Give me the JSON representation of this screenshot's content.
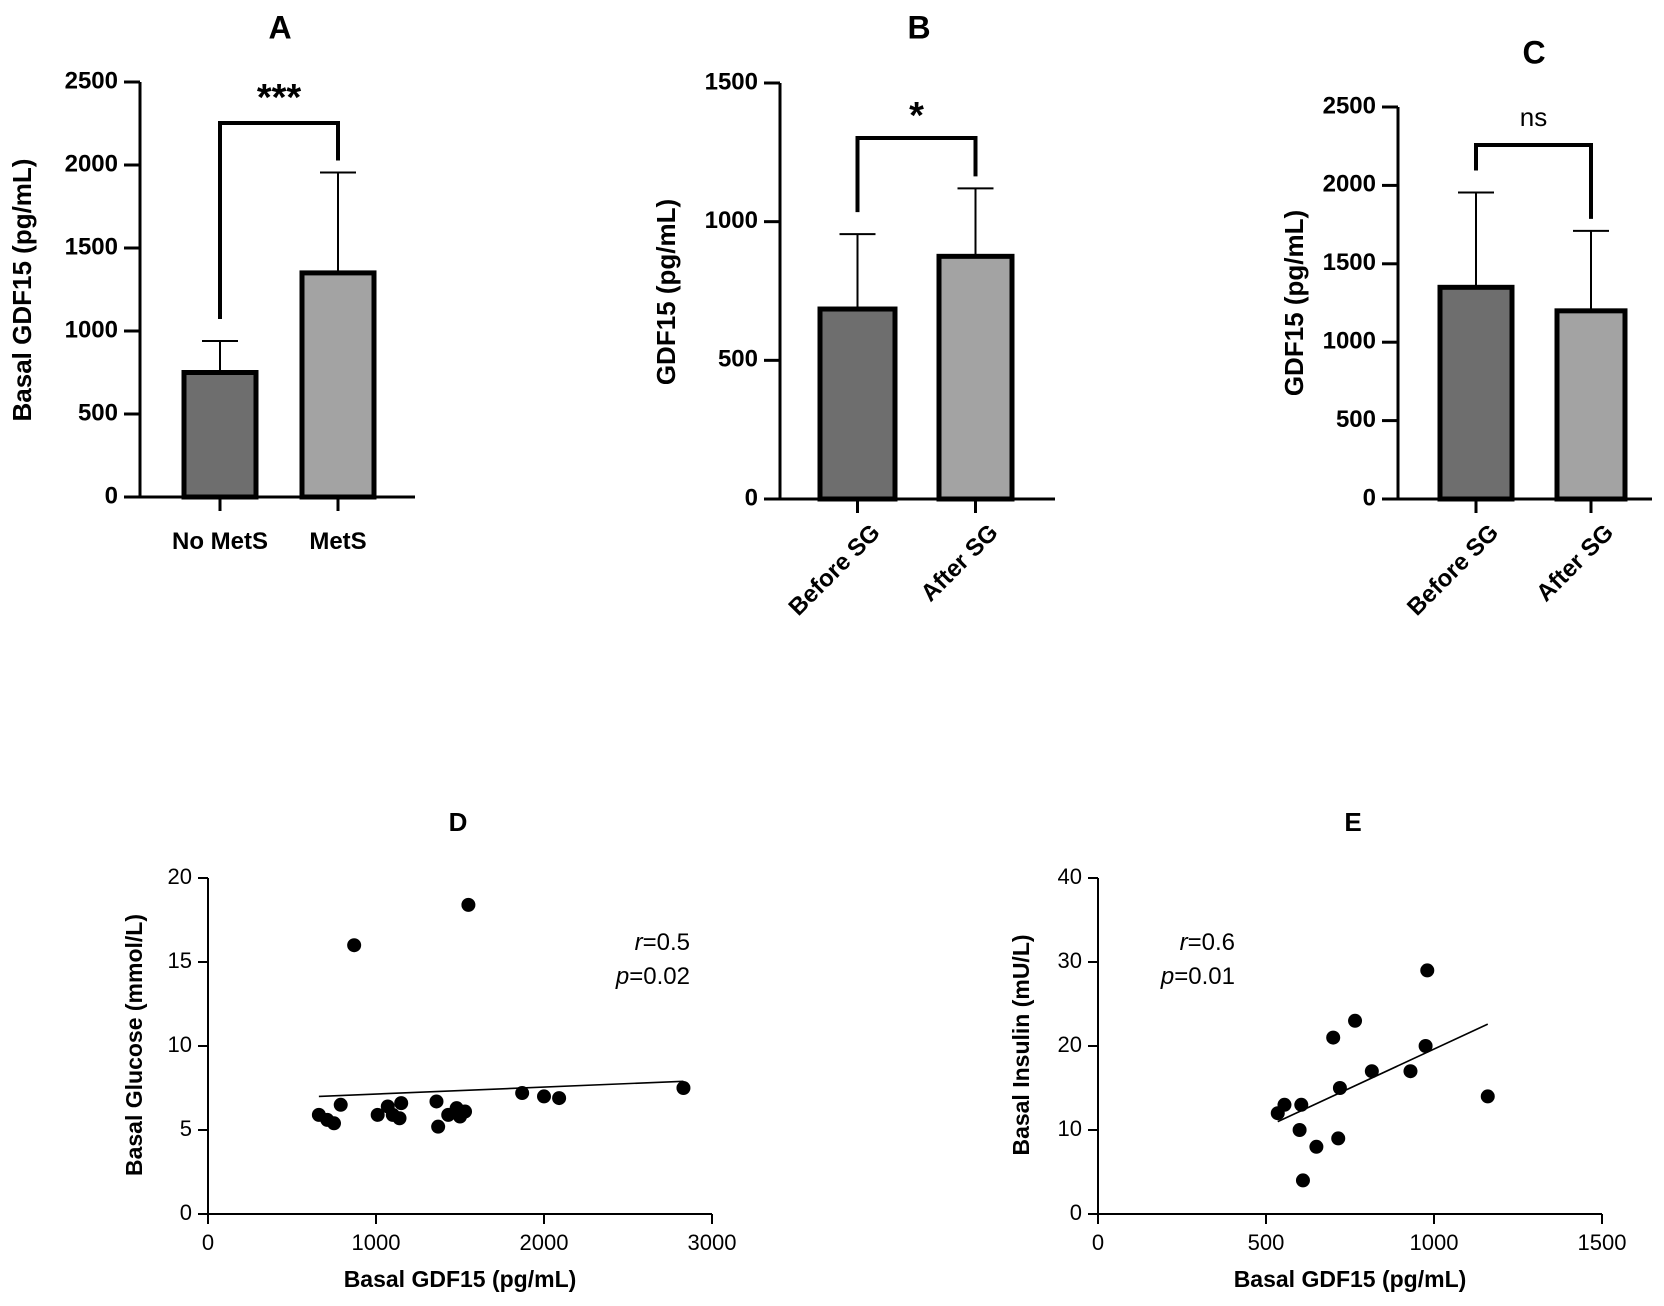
{
  "chart_data": [
    {
      "panel": "A",
      "type": "bar",
      "title": "A",
      "categories": [
        "No MetS",
        "MetS"
      ],
      "values": [
        750,
        1350
      ],
      "error_upper": [
        940,
        1955
      ],
      "ylabel": "Basal GDF15 (pg/mL)",
      "xlabel": "",
      "ylim": [
        0,
        2500
      ],
      "yticks": [
        "0",
        "500",
        "1000",
        "1500",
        "2000",
        "2500"
      ],
      "significance": "***",
      "bar_colors": [
        "#6e6e6e",
        "#a3a3a3"
      ]
    },
    {
      "panel": "B",
      "type": "bar",
      "title": "B",
      "categories": [
        "Before SG",
        "After SG"
      ],
      "values": [
        685,
        875
      ],
      "error_upper": [
        955,
        1120
      ],
      "ylabel": "GDF15 (pg/mL)",
      "xlabel": "",
      "ylim": [
        0,
        1500
      ],
      "yticks": [
        "0",
        "500",
        "1000",
        "1500"
      ],
      "significance": "*",
      "bar_colors": [
        "#6e6e6e",
        "#a3a3a3"
      ]
    },
    {
      "panel": "C",
      "type": "bar",
      "title": "C",
      "categories": [
        "Before SG",
        "After SG"
      ],
      "values": [
        1350,
        1200
      ],
      "error_upper": [
        1955,
        1710
      ],
      "ylabel": "GDF15 (pg/mL)",
      "xlabel": "",
      "ylim": [
        0,
        2500
      ],
      "yticks": [
        "0",
        "500",
        "1000",
        "1500",
        "2000",
        "2500"
      ],
      "significance": "ns",
      "bar_colors": [
        "#6e6e6e",
        "#a3a3a3"
      ]
    },
    {
      "panel": "D",
      "type": "scatter",
      "title": "D",
      "xlabel": "Basal GDF15 (pg/mL)",
      "ylabel": "Basal Glucose (mmol/L)",
      "xlim": [
        0,
        3000
      ],
      "ylim": [
        0,
        20
      ],
      "xticks": [
        "0",
        "1000",
        "2000",
        "3000"
      ],
      "yticks": [
        "0",
        "5",
        "10",
        "15",
        "20"
      ],
      "points": [
        {
          "x": 660,
          "y": 5.9
        },
        {
          "x": 710,
          "y": 5.6
        },
        {
          "x": 750,
          "y": 5.4
        },
        {
          "x": 790,
          "y": 6.5
        },
        {
          "x": 870,
          "y": 16.0
        },
        {
          "x": 1010,
          "y": 5.9
        },
        {
          "x": 1070,
          "y": 6.4
        },
        {
          "x": 1100,
          "y": 5.9
        },
        {
          "x": 1140,
          "y": 5.7
        },
        {
          "x": 1150,
          "y": 6.6
        },
        {
          "x": 1360,
          "y": 6.7
        },
        {
          "x": 1370,
          "y": 5.2
        },
        {
          "x": 1430,
          "y": 5.9
        },
        {
          "x": 1480,
          "y": 6.3
        },
        {
          "x": 1500,
          "y": 5.8
        },
        {
          "x": 1530,
          "y": 6.1
        },
        {
          "x": 1550,
          "y": 18.4
        },
        {
          "x": 1870,
          "y": 7.2
        },
        {
          "x": 2000,
          "y": 7.0
        },
        {
          "x": 2090,
          "y": 6.9
        },
        {
          "x": 2830,
          "y": 7.5
        }
      ],
      "fit_line": {
        "x1": 660,
        "y1": 7.0,
        "x2": 2830,
        "y2": 7.9
      },
      "annotation": {
        "r_label": "r",
        "r_value": "=0.5",
        "p_label": "p",
        "p_value": "=0.02"
      }
    },
    {
      "panel": "E",
      "type": "scatter",
      "title": "E",
      "xlabel": "Basal GDF15 (pg/mL)",
      "ylabel": "Basal Insulin  (mU/L)",
      "xlim": [
        0,
        1500
      ],
      "ylim": [
        0,
        40
      ],
      "xticks": [
        "0",
        "500",
        "1000",
        "1500"
      ],
      "yticks": [
        "0",
        "10",
        "20",
        "30",
        "40"
      ],
      "points": [
        {
          "x": 535,
          "y": 12
        },
        {
          "x": 555,
          "y": 13
        },
        {
          "x": 600,
          "y": 10
        },
        {
          "x": 605,
          "y": 13
        },
        {
          "x": 610,
          "y": 4
        },
        {
          "x": 650,
          "y": 8
        },
        {
          "x": 700,
          "y": 21
        },
        {
          "x": 715,
          "y": 9
        },
        {
          "x": 720,
          "y": 15
        },
        {
          "x": 765,
          "y": 23
        },
        {
          "x": 815,
          "y": 17
        },
        {
          "x": 930,
          "y": 17
        },
        {
          "x": 975,
          "y": 20
        },
        {
          "x": 980,
          "y": 29
        },
        {
          "x": 1160,
          "y": 14
        }
      ],
      "fit_line": {
        "x1": 535,
        "y1": 11.0,
        "x2": 1160,
        "y2": 22.6
      },
      "annotation": {
        "r_label": "r",
        "r_value": "=0.6",
        "p_label": "p",
        "p_value": "=0.01"
      }
    }
  ]
}
